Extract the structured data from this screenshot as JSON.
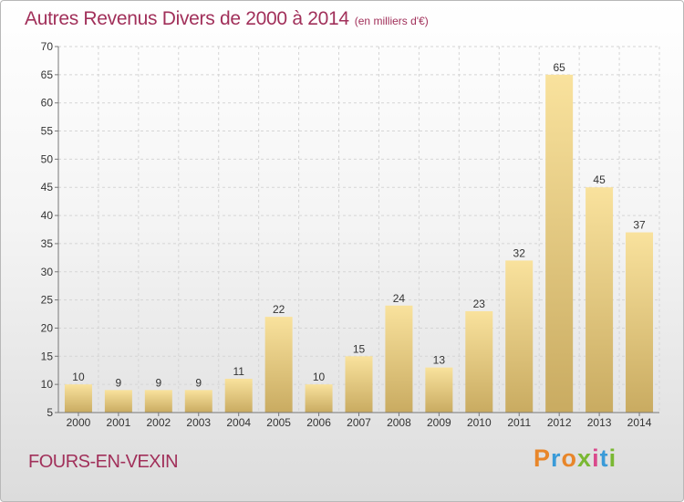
{
  "header": {
    "title": "Autres Revenus Divers de 2000 à 2014",
    "subtitle": "(en milliers d'€)"
  },
  "footer": {
    "commune": "FOURS-EN-VEXIN",
    "logo_text": "Proxiti",
    "logo_colors": [
      "#e8862a",
      "#3a9bd8",
      "#e8862a",
      "#7ab833",
      "#d94a8c",
      "#3a9bd8",
      "#7ab833"
    ]
  },
  "colors": {
    "text_accent": "#a1305a",
    "bar_light": "#f9e29d",
    "bar_dark": "#c9ab61",
    "grid": "#d5d5d5",
    "axis": "#777777"
  },
  "chart_data": {
    "type": "bar",
    "categories": [
      "2000",
      "2001",
      "2002",
      "2003",
      "2004",
      "2005",
      "2006",
      "2007",
      "2008",
      "2009",
      "2010",
      "2011",
      "2012",
      "2013",
      "2014"
    ],
    "values": [
      10,
      9,
      9,
      9,
      11,
      22,
      10,
      15,
      24,
      13,
      23,
      32,
      65,
      45,
      37
    ],
    "value_labels": [
      "10",
      "9",
      "9",
      "9",
      "11",
      "22",
      "10",
      "15",
      "24",
      "13",
      "23",
      "32",
      "65",
      "45",
      "37"
    ],
    "yticks": [
      "5",
      "10",
      "15",
      "20",
      "25",
      "30",
      "35",
      "40",
      "45",
      "50",
      "55",
      "60",
      "65",
      "70"
    ],
    "ylim": [
      5,
      70
    ],
    "grid": true,
    "legend": "none"
  }
}
